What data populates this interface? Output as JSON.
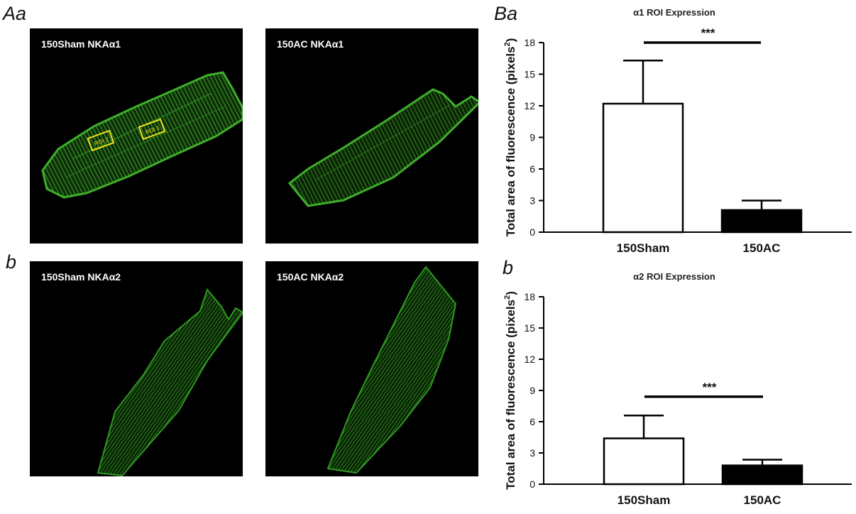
{
  "panel_letters": {
    "Aa": "Aa",
    "b_left": "b",
    "Ba": "Ba",
    "b_right": "b"
  },
  "micrographs": [
    {
      "label": "150Sham NKAα1",
      "roi_labels": [
        "ROI 2",
        "ROI 1"
      ],
      "color": "#3fae2a"
    },
    {
      "label": "150AC NKAα1",
      "color": "#3fae2a"
    },
    {
      "label": "150Sham NKAα2",
      "color": "#2e9a22"
    },
    {
      "label": "150AC NKAα2",
      "color": "#2e9a22"
    }
  ],
  "chart_data": [
    {
      "type": "bar",
      "title": "α1 ROI Expression",
      "ylabel": "Total area of fluorescence (pixels²)",
      "ylabel_main": "Total area of fluorescence (pixels",
      "ylabel_sup": "2",
      "ylabel_end": ")",
      "categories": [
        "150Sham",
        "150AC"
      ],
      "values": [
        12.2,
        2.1
      ],
      "errors": [
        4.1,
        0.9
      ],
      "bar_fill": [
        "#ffffff",
        "#000000"
      ],
      "ylim": [
        0,
        18
      ],
      "yticks": [
        "0",
        "3",
        "6",
        "9",
        "12",
        "15",
        "18"
      ],
      "significance": "***",
      "sig_y": 18.0
    },
    {
      "type": "bar",
      "title": "α2 ROI Expression",
      "ylabel": "Total area of fluorescence (pixels²)",
      "ylabel_main": "Total area of fluorescence (pixels",
      "ylabel_sup": "2",
      "ylabel_end": ")",
      "categories": [
        "150Sham",
        "150AC"
      ],
      "values": [
        4.4,
        1.8
      ],
      "errors": [
        2.2,
        0.55
      ],
      "bar_fill": [
        "#ffffff",
        "#000000"
      ],
      "ylim": [
        0,
        18
      ],
      "yticks": [
        "0",
        "3",
        "6",
        "9",
        "12",
        "15",
        "18"
      ],
      "significance": "***",
      "sig_y": 8.4
    }
  ]
}
